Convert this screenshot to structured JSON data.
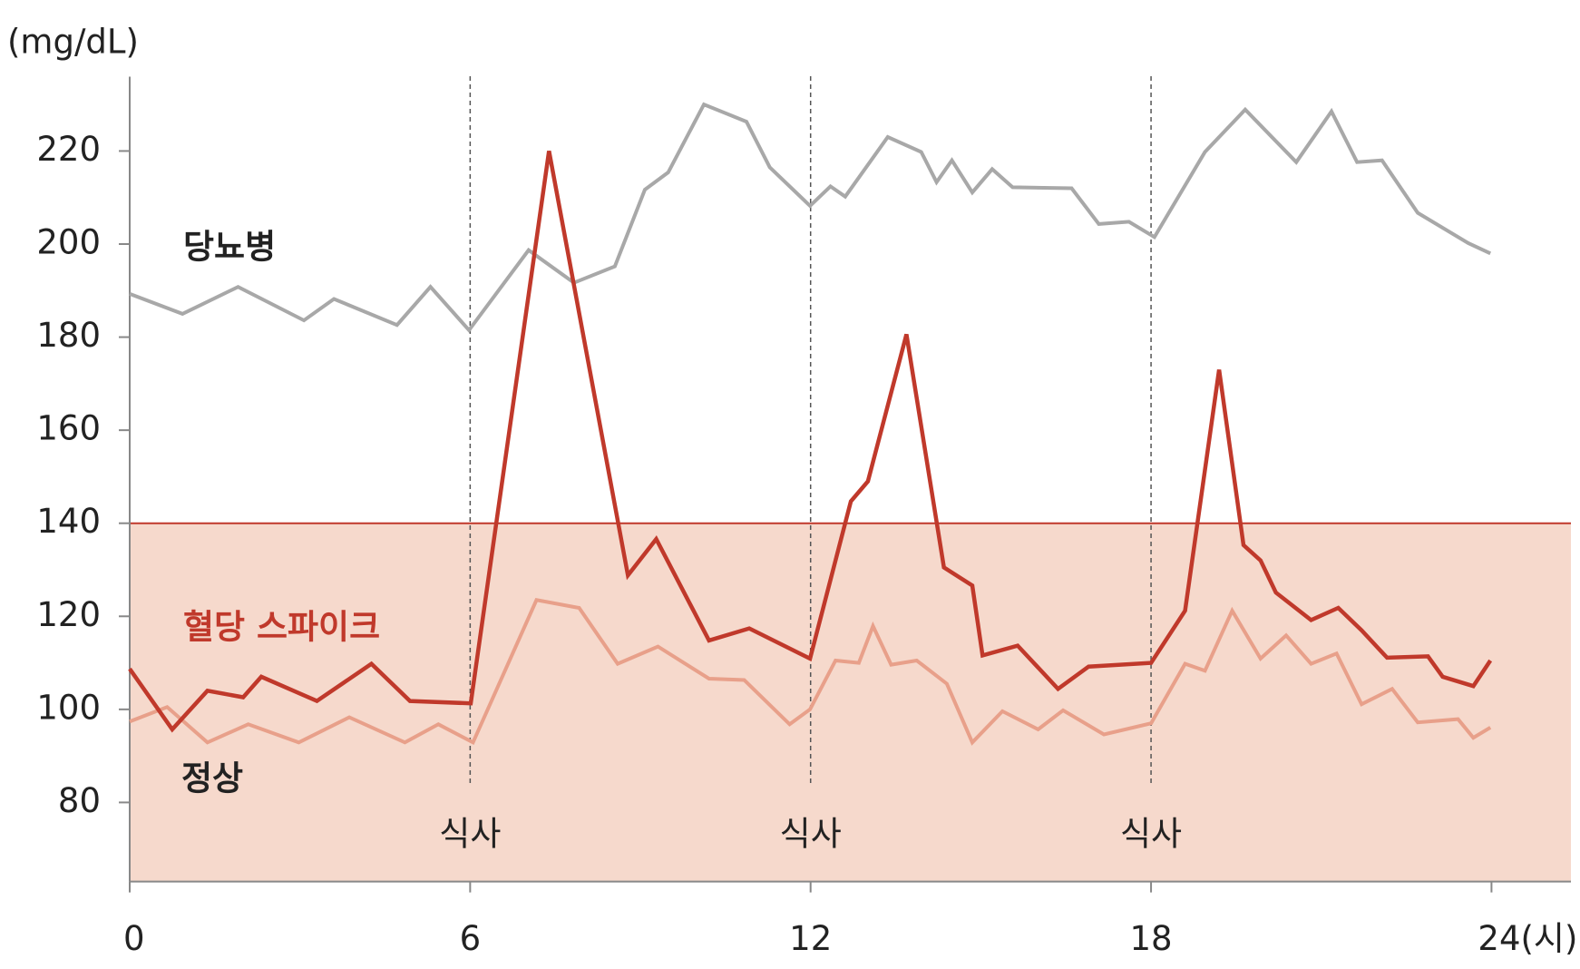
{
  "chart_data": {
    "type": "line",
    "y_label": "(mg/dL)",
    "xlim": [
      0,
      25.4
    ],
    "ylim": [
      63,
      235
    ],
    "xticks": [
      0,
      6,
      12,
      18,
      {
        "value": 24,
        "label": "24(시)"
      }
    ],
    "yticks": [
      80,
      100,
      120,
      140,
      160,
      180,
      200,
      220
    ],
    "threshold": {
      "value": 140,
      "color": "#c0392b",
      "fill": "#f6d9cc"
    },
    "annotations": [
      {
        "x": 6,
        "label": "식사"
      },
      {
        "x": 12,
        "label": "식사"
      },
      {
        "x": 18,
        "label": "식사"
      }
    ],
    "series": [
      {
        "name": "당뇨병",
        "color": "#a8a8a8",
        "x": [
          0,
          0.93,
          1.91,
          3.07,
          3.6,
          4.71,
          5.3,
          5.98,
          7.03,
          7.83,
          8.55,
          9.08,
          9.49,
          10.12,
          10.87,
          11.28,
          11.99,
          12.35,
          12.61,
          13.36,
          13.95,
          14.22,
          14.49,
          14.85,
          15.2,
          15.56,
          16.6,
          17.08,
          17.61,
          18.06,
          18.95,
          19.66,
          20.56,
          21.18,
          21.63,
          22.07,
          22.7,
          23.59,
          23.98
        ],
        "values": [
          189.3,
          185,
          190.8,
          183.6,
          188.2,
          182.6,
          190.8,
          181.5,
          198.7,
          191.7,
          195.2,
          211.7,
          215.4,
          230,
          226.3,
          216.5,
          208.2,
          212.4,
          210.2,
          223,
          219.8,
          213.3,
          218,
          211.1,
          216.1,
          212.2,
          212,
          204.3,
          204.8,
          201.5,
          219.8,
          228.9,
          217.6,
          228.5,
          217.6,
          218,
          206.7,
          200.2,
          198
        ]
      },
      {
        "name": "혈당 스파이크",
        "color": "#c0392b",
        "x": [
          0,
          0.75,
          1.37,
          2,
          2.32,
          3.3,
          4.26,
          4.94,
          6.01,
          7.39,
          8.78,
          9.28,
          10.21,
          10.92,
          11.99,
          12.71,
          13.01,
          13.69,
          14.35,
          14.85,
          15.03,
          15.65,
          16.36,
          16.9,
          18.0,
          18.6,
          19.2,
          19.63,
          19.93,
          20.2,
          20.82,
          21.3,
          21.71,
          22.16,
          22.88,
          23.14,
          23.68,
          23.98
        ],
        "values": [
          108.7,
          95.7,
          104,
          102.6,
          107,
          101.8,
          109.8,
          101.8,
          101.3,
          220,
          128.8,
          136.6,
          114.8,
          117.4,
          110.9,
          144.7,
          149,
          180.6,
          130.5,
          126.6,
          111.6,
          113.7,
          104.4,
          109.2,
          110,
          121.2,
          173,
          135.3,
          132,
          125.1,
          119.2,
          121.8,
          117,
          111.1,
          111.4,
          107,
          105,
          110.5
        ]
      },
      {
        "name": "정상",
        "color": "#e8a08a",
        "x": [
          0,
          0.66,
          1.37,
          2.09,
          2.98,
          3.87,
          4.85,
          5.44,
          6.05,
          7.17,
          7.92,
          8.6,
          9.31,
          10.21,
          10.83,
          11.63,
          11.99,
          12.44,
          12.85,
          13.1,
          13.42,
          13.87,
          14.4,
          14.85,
          15.38,
          16.01,
          16.45,
          17.17,
          18.0,
          18.6,
          18.95,
          19.43,
          19.93,
          20.38,
          20.82,
          21.27,
          21.71,
          22.25,
          22.7,
          23.41,
          23.68,
          23.98
        ],
        "values": [
          97.4,
          100.5,
          92.9,
          96.8,
          92.9,
          98.3,
          92.9,
          96.8,
          92.9,
          123.5,
          121.8,
          109.8,
          113.5,
          106.6,
          106.3,
          96.8,
          100,
          110.5,
          110,
          117.9,
          109.6,
          110.5,
          105.5,
          92.9,
          99.6,
          95.7,
          99.8,
          94.6,
          97,
          109.8,
          108.3,
          121.2,
          110.9,
          115.9,
          109.8,
          112,
          101.1,
          104.4,
          97.2,
          97.9,
          93.9,
          96.1
        ]
      }
    ]
  }
}
